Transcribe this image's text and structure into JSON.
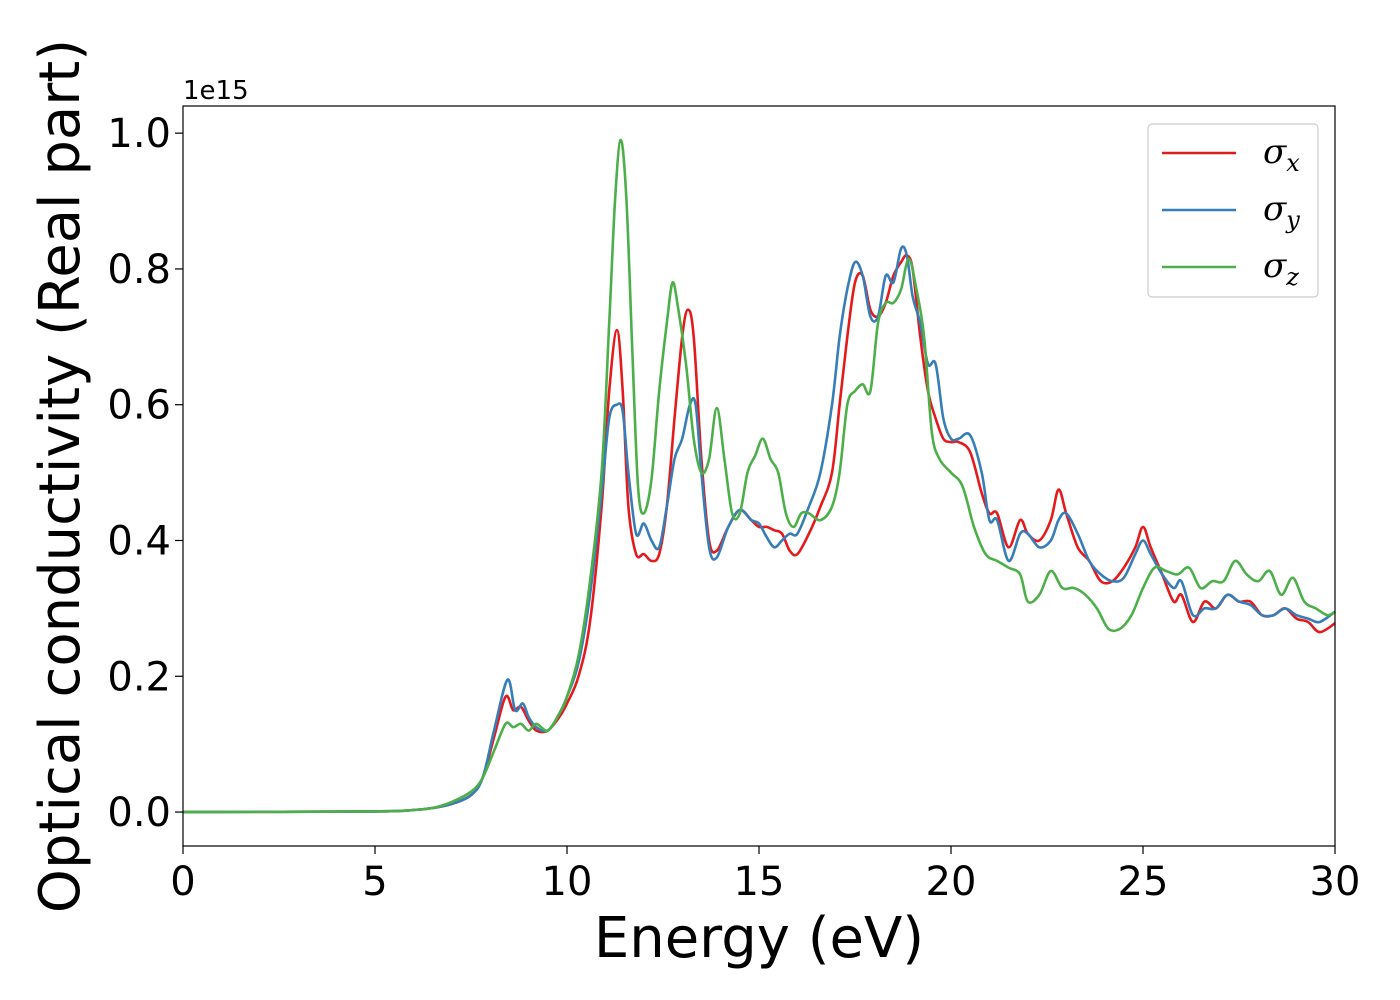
{
  "chart_data": {
    "type": "line",
    "xlabel": "Energy (eV)",
    "ylabel": "Optical conductivity (Real part)",
    "y_offset_label": "1e15",
    "xlim": [
      0,
      30
    ],
    "ylim": [
      -0.05,
      1.04
    ],
    "x_ticks": [
      0,
      5,
      10,
      15,
      20,
      25,
      30
    ],
    "x_tick_labels": [
      "0",
      "5",
      "10",
      "15",
      "20",
      "25",
      "30"
    ],
    "y_ticks": [
      0.0,
      0.2,
      0.4,
      0.6,
      0.8,
      1.0
    ],
    "y_tick_labels": [
      "0.0",
      "0.2",
      "0.4",
      "0.6",
      "0.8",
      "1.0"
    ],
    "grid": false,
    "legend_position": "top-right",
    "series": [
      {
        "name": "σ",
        "subscript": "x",
        "color": "#e41a1c",
        "x": [
          0,
          5,
          6,
          6.5,
          7,
          7.5,
          7.8,
          8.1,
          8.4,
          8.6,
          8.8,
          9.0,
          9.2,
          9.5,
          9.8,
          10.0,
          10.3,
          10.6,
          10.9,
          11.1,
          11.3,
          11.45,
          11.6,
          11.8,
          12.0,
          12.2,
          12.4,
          12.6,
          12.8,
          13.0,
          13.15,
          13.3,
          13.5,
          13.7,
          13.9,
          14.2,
          14.5,
          14.8,
          15.0,
          15.2,
          15.4,
          15.6,
          15.8,
          16.0,
          16.3,
          16.6,
          16.9,
          17.1,
          17.3,
          17.5,
          17.7,
          17.9,
          18.1,
          18.3,
          18.5,
          18.7,
          18.85,
          19.0,
          19.2,
          19.4,
          19.6,
          19.8,
          20.0,
          20.2,
          20.5,
          20.8,
          21.0,
          21.2,
          21.5,
          21.8,
          22.0,
          22.3,
          22.6,
          22.8,
          23.0,
          23.3,
          23.6,
          23.9,
          24.2,
          24.5,
          24.8,
          25.0,
          25.2,
          25.5,
          25.8,
          26.0,
          26.3,
          26.6,
          26.9,
          27.2,
          27.5,
          27.8,
          28.1,
          28.4,
          28.7,
          29.0,
          29.3,
          29.6,
          30.0
        ],
        "y": [
          0.0,
          0.001,
          0.003,
          0.006,
          0.012,
          0.025,
          0.05,
          0.11,
          0.17,
          0.15,
          0.155,
          0.135,
          0.12,
          0.12,
          0.14,
          0.16,
          0.2,
          0.28,
          0.45,
          0.62,
          0.71,
          0.62,
          0.45,
          0.38,
          0.38,
          0.37,
          0.38,
          0.45,
          0.58,
          0.7,
          0.74,
          0.7,
          0.52,
          0.4,
          0.385,
          0.42,
          0.445,
          0.43,
          0.42,
          0.42,
          0.415,
          0.41,
          0.385,
          0.38,
          0.41,
          0.45,
          0.5,
          0.6,
          0.7,
          0.78,
          0.79,
          0.74,
          0.73,
          0.75,
          0.79,
          0.81,
          0.82,
          0.8,
          0.7,
          0.62,
          0.58,
          0.55,
          0.545,
          0.545,
          0.53,
          0.47,
          0.44,
          0.44,
          0.39,
          0.43,
          0.41,
          0.4,
          0.43,
          0.475,
          0.44,
          0.39,
          0.37,
          0.34,
          0.34,
          0.36,
          0.39,
          0.42,
          0.39,
          0.35,
          0.31,
          0.32,
          0.28,
          0.31,
          0.3,
          0.32,
          0.31,
          0.31,
          0.29,
          0.29,
          0.3,
          0.285,
          0.28,
          0.265,
          0.278
        ]
      },
      {
        "name": "σ",
        "subscript": "y",
        "color": "#377eb8",
        "x": [
          0,
          5,
          6,
          6.5,
          7,
          7.5,
          7.8,
          8.1,
          8.45,
          8.65,
          8.85,
          9.0,
          9.2,
          9.5,
          9.8,
          10.0,
          10.3,
          10.6,
          10.9,
          11.1,
          11.3,
          11.45,
          11.6,
          11.8,
          12.0,
          12.2,
          12.4,
          12.6,
          12.8,
          13.0,
          13.2,
          13.35,
          13.5,
          13.7,
          13.9,
          14.2,
          14.5,
          14.8,
          15.0,
          15.2,
          15.4,
          15.6,
          15.8,
          16.0,
          16.3,
          16.6,
          16.9,
          17.1,
          17.3,
          17.5,
          17.7,
          17.9,
          18.1,
          18.3,
          18.5,
          18.7,
          18.85,
          19.0,
          19.2,
          19.4,
          19.6,
          19.8,
          20.0,
          20.2,
          20.5,
          20.8,
          21.0,
          21.2,
          21.5,
          21.8,
          22.0,
          22.3,
          22.6,
          22.8,
          23.0,
          23.3,
          23.6,
          23.9,
          24.2,
          24.5,
          24.8,
          25.0,
          25.2,
          25.5,
          25.8,
          26.0,
          26.3,
          26.6,
          26.9,
          27.2,
          27.5,
          27.8,
          28.1,
          28.4,
          28.7,
          29.0,
          29.3,
          29.6,
          30.0
        ],
        "y": [
          0.0,
          0.001,
          0.003,
          0.006,
          0.012,
          0.025,
          0.05,
          0.12,
          0.195,
          0.15,
          0.16,
          0.14,
          0.125,
          0.12,
          0.145,
          0.17,
          0.22,
          0.32,
          0.47,
          0.58,
          0.6,
          0.59,
          0.5,
          0.41,
          0.425,
          0.4,
          0.39,
          0.45,
          0.52,
          0.55,
          0.6,
          0.6,
          0.5,
          0.39,
          0.375,
          0.42,
          0.445,
          0.43,
          0.425,
          0.405,
          0.39,
          0.4,
          0.41,
          0.41,
          0.45,
          0.5,
          0.6,
          0.7,
          0.77,
          0.81,
          0.79,
          0.73,
          0.73,
          0.79,
          0.78,
          0.83,
          0.82,
          0.76,
          0.72,
          0.66,
          0.66,
          0.58,
          0.55,
          0.55,
          0.555,
          0.5,
          0.43,
          0.43,
          0.37,
          0.41,
          0.41,
          0.39,
          0.4,
          0.43,
          0.44,
          0.41,
          0.37,
          0.35,
          0.34,
          0.345,
          0.38,
          0.4,
          0.38,
          0.35,
          0.33,
          0.34,
          0.29,
          0.3,
          0.3,
          0.32,
          0.31,
          0.305,
          0.29,
          0.29,
          0.3,
          0.29,
          0.285,
          0.28,
          0.295
        ]
      },
      {
        "name": "σ",
        "subscript": "z",
        "color": "#4daf4a",
        "x": [
          0,
          5,
          6,
          6.5,
          7,
          7.5,
          7.8,
          8.1,
          8.4,
          8.6,
          8.8,
          9.0,
          9.2,
          9.5,
          9.8,
          10.0,
          10.3,
          10.6,
          10.9,
          11.1,
          11.25,
          11.4,
          11.55,
          11.7,
          11.85,
          12.0,
          12.2,
          12.4,
          12.6,
          12.75,
          12.9,
          13.1,
          13.3,
          13.5,
          13.7,
          13.9,
          14.1,
          14.3,
          14.5,
          14.7,
          14.9,
          15.1,
          15.3,
          15.5,
          15.7,
          15.9,
          16.1,
          16.3,
          16.6,
          16.9,
          17.1,
          17.3,
          17.5,
          17.7,
          17.9,
          18.1,
          18.3,
          18.5,
          18.7,
          18.9,
          19.1,
          19.3,
          19.5,
          19.7,
          20.0,
          20.3,
          20.6,
          20.9,
          21.2,
          21.5,
          21.8,
          22.0,
          22.3,
          22.6,
          22.9,
          23.2,
          23.5,
          23.8,
          24.1,
          24.4,
          24.7,
          25.0,
          25.3,
          25.6,
          25.9,
          26.2,
          26.5,
          26.8,
          27.1,
          27.4,
          27.7,
          28.0,
          28.3,
          28.6,
          28.9,
          29.2,
          29.5,
          29.8,
          30.0
        ],
        "y": [
          0.0,
          0.001,
          0.003,
          0.006,
          0.015,
          0.03,
          0.05,
          0.09,
          0.13,
          0.125,
          0.13,
          0.12,
          0.13,
          0.12,
          0.145,
          0.17,
          0.23,
          0.34,
          0.5,
          0.72,
          0.9,
          0.99,
          0.9,
          0.68,
          0.48,
          0.44,
          0.49,
          0.62,
          0.72,
          0.78,
          0.74,
          0.66,
          0.55,
          0.5,
          0.52,
          0.595,
          0.52,
          0.44,
          0.44,
          0.5,
          0.525,
          0.55,
          0.52,
          0.5,
          0.44,
          0.42,
          0.44,
          0.44,
          0.43,
          0.45,
          0.5,
          0.6,
          0.62,
          0.63,
          0.62,
          0.72,
          0.75,
          0.75,
          0.77,
          0.815,
          0.77,
          0.7,
          0.56,
          0.52,
          0.5,
          0.48,
          0.42,
          0.38,
          0.37,
          0.36,
          0.35,
          0.31,
          0.32,
          0.355,
          0.33,
          0.33,
          0.32,
          0.3,
          0.27,
          0.27,
          0.29,
          0.33,
          0.36,
          0.355,
          0.35,
          0.36,
          0.33,
          0.34,
          0.34,
          0.37,
          0.35,
          0.34,
          0.355,
          0.32,
          0.345,
          0.31,
          0.3,
          0.29,
          0.295
        ]
      }
    ]
  }
}
